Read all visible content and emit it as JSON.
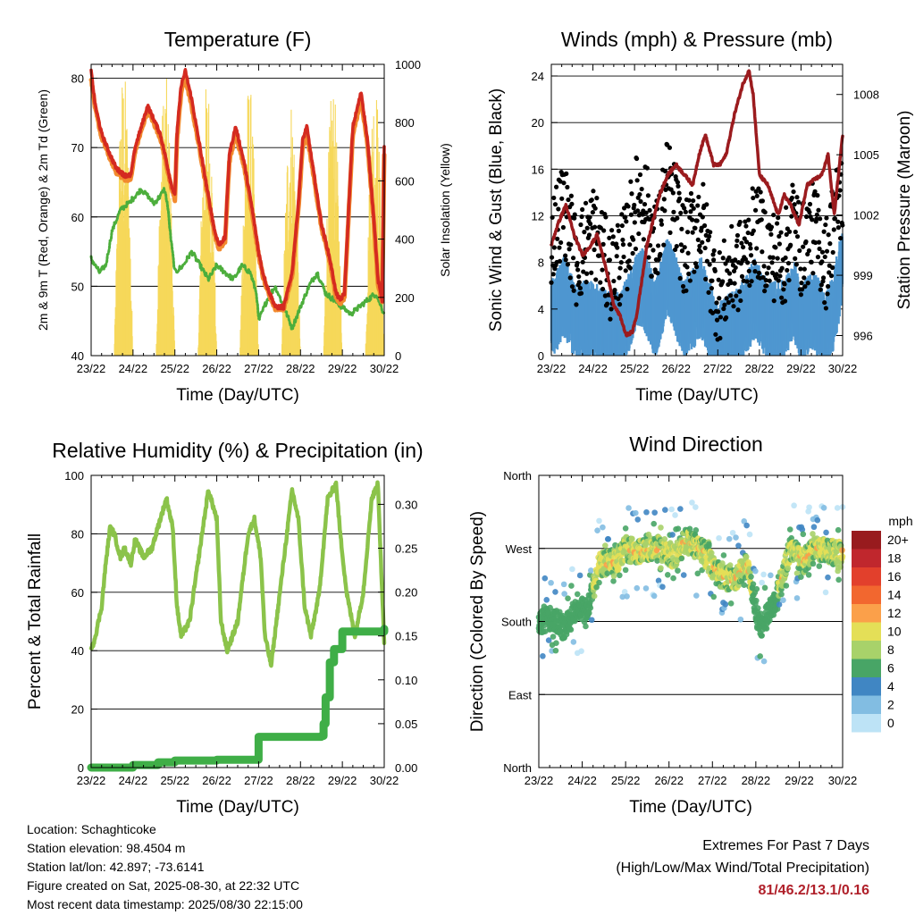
{
  "day_ticks": [
    "23/22",
    "24/22",
    "25/22",
    "26/22",
    "27/22",
    "28/22",
    "29/22",
    "30/22"
  ],
  "footer": {
    "location": "Location: Schaghticoke",
    "elevation": "Station elevation: 98.4504 m",
    "latlon": "Station lat/lon: 42.897; -73.6141",
    "created": "Figure created on Sat, 2025-08-30, at 22:32 UTC",
    "recent": "Most recent data timestamp: 2025/08/30 22:15:00"
  },
  "extremes": {
    "title": "Extremes For Past 7 Days",
    "subtitle": "(High/Low/Max Wind/Total Precipitation)",
    "values": "81/46.2/13.1/0.16"
  },
  "chart_data": [
    {
      "type": "line",
      "title": "Temperature (F)",
      "xlabel": "Time (Day/UTC)",
      "ylabel": "2m & 9m T (Red, Orange) & 2m Td (Green)",
      "ylabel_right": "Solar Insolation (Yellow)",
      "xlim": [
        0,
        7
      ],
      "ylim": [
        40,
        82
      ],
      "ylim_right": [
        0,
        1000
      ],
      "yticks": [
        40,
        50,
        60,
        70,
        80
      ],
      "yticks_right": [
        0,
        200,
        400,
        600,
        800,
        1000
      ],
      "grid": true,
      "series": [
        {
          "name": "2m T",
          "color": "#d42a20",
          "x": [
            0,
            0.1,
            0.25,
            0.45,
            0.6,
            0.8,
            0.95,
            1.05,
            1.2,
            1.35,
            1.5,
            1.65,
            1.8,
            1.9,
            2.0,
            2.05,
            2.15,
            2.25,
            2.4,
            2.6,
            2.8,
            2.95,
            3.05,
            3.2,
            3.3,
            3.45,
            3.65,
            3.85,
            4.0,
            4.1,
            4.2,
            4.4,
            4.6,
            4.8,
            4.95,
            5.05,
            5.15,
            5.3,
            5.5,
            5.7,
            5.85,
            5.95,
            6.05,
            6.25,
            6.45,
            6.6,
            6.75,
            6.85,
            6.95,
            7.0
          ],
          "values": [
            81,
            76,
            72,
            69,
            67,
            66,
            66,
            70,
            73,
            76,
            74,
            72,
            68,
            65,
            63,
            72,
            79,
            81,
            77,
            70,
            63,
            58,
            56,
            57,
            69,
            73,
            68,
            61,
            55,
            52,
            50,
            47,
            47,
            52,
            62,
            71,
            73,
            67,
            59,
            54,
            49,
            48,
            49,
            73,
            78,
            71,
            60,
            51,
            48,
            70
          ]
        },
        {
          "name": "9m T",
          "color": "#f28a2e",
          "x": [
            0,
            0.1,
            0.25,
            0.45,
            0.6,
            0.8,
            0.95,
            1.05,
            1.2,
            1.35,
            1.5,
            1.65,
            1.8,
            1.9,
            2.0,
            2.05,
            2.15,
            2.25,
            2.4,
            2.6,
            2.8,
            2.95,
            3.05,
            3.2,
            3.3,
            3.45,
            3.65,
            3.85,
            4.0,
            4.1,
            4.2,
            4.4,
            4.6,
            4.8,
            4.95,
            5.05,
            5.15,
            5.3,
            5.5,
            5.7,
            5.85,
            5.95,
            6.05,
            6.25,
            6.45,
            6.6,
            6.75,
            6.85,
            6.95,
            7.0
          ],
          "values": [
            80,
            75.5,
            71.5,
            68.5,
            66.5,
            65.5,
            65.5,
            69.5,
            72.5,
            75.5,
            73.5,
            71.5,
            67.5,
            64.5,
            62.5,
            71,
            78,
            80,
            76,
            69.5,
            62.5,
            57.5,
            55.5,
            56.5,
            68,
            72,
            67.5,
            60.5,
            54.5,
            51.5,
            49.5,
            46.8,
            46.8,
            51.5,
            61,
            70,
            72,
            66.5,
            58.5,
            53.5,
            48.5,
            47.5,
            48.5,
            72,
            77,
            70.5,
            59.5,
            50.5,
            47.5,
            69
          ]
        },
        {
          "name": "2m Td",
          "color": "#4cae3c",
          "x": [
            0,
            0.1,
            0.2,
            0.35,
            0.5,
            0.7,
            0.9,
            1.05,
            1.2,
            1.35,
            1.5,
            1.65,
            1.75,
            1.82,
            1.9,
            2.0,
            2.2,
            2.4,
            2.6,
            2.8,
            3.0,
            3.2,
            3.4,
            3.6,
            3.8,
            3.95,
            4.0,
            4.2,
            4.4,
            4.6,
            4.8,
            5.0,
            5.2,
            5.4,
            5.6,
            5.8,
            6.0,
            6.2,
            6.4,
            6.6,
            6.8,
            7.0
          ],
          "values": [
            54,
            53,
            52,
            53,
            58,
            61,
            62,
            63,
            64,
            63,
            62,
            63,
            64,
            62,
            57,
            52,
            53,
            55,
            53,
            51,
            53,
            52,
            51,
            53,
            52,
            49,
            45,
            48,
            50,
            47,
            44,
            47,
            50,
            52,
            49,
            48,
            47,
            46,
            47,
            48,
            49,
            46
          ]
        },
        {
          "name": "Solar Insolation",
          "color": "#f6d85a",
          "axis": "right",
          "day_peaks": [
            380,
            1000,
            970,
            960,
            950,
            900,
            940,
            980
          ]
        }
      ]
    },
    {
      "type": "scatter",
      "title": "Winds (mph) & Pressure (mb)",
      "xlabel": "Time (Day/UTC)",
      "ylabel": "Sonic Wind & Gust (Blue, Black)",
      "ylabel_right": "Station Pressure (Maroon)",
      "xlim": [
        0,
        7
      ],
      "ylim": [
        0,
        25
      ],
      "ylim_right": [
        995,
        1009.5
      ],
      "yticks": [
        0,
        4,
        8,
        12,
        16,
        20,
        24
      ],
      "yticks_right": [
        996,
        999,
        1002,
        1005,
        1008
      ],
      "grid": true,
      "series": [
        {
          "name": "Gust",
          "color": "#000000",
          "x": [
            0,
            0.3,
            0.6,
            1.0,
            1.4,
            1.8,
            2.0,
            2.2,
            2.5,
            2.8,
            3.2,
            3.6,
            3.8,
            4.0,
            4.3,
            4.6,
            4.9,
            5.2,
            5.6,
            5.8,
            6.0,
            6.3,
            6.6,
            6.8,
            7.0
          ],
          "values": [
            10,
            13,
            8,
            11,
            7,
            9,
            13,
            14,
            9,
            15,
            9,
            12,
            8,
            5,
            7,
            8,
            11,
            9,
            8,
            12,
            9,
            11,
            8,
            12,
            14
          ]
        },
        {
          "name": "Wind",
          "color": "#4f97d0",
          "x": [
            0,
            0.3,
            0.6,
            1.0,
            1.4,
            1.8,
            2.0,
            2.2,
            2.5,
            2.8,
            3.2,
            3.6,
            3.8,
            4.0,
            4.3,
            4.6,
            4.9,
            5.2,
            5.6,
            5.8,
            6.0,
            6.3,
            6.6,
            6.8,
            7.0
          ],
          "values": [
            3,
            5,
            3,
            3,
            2,
            3,
            5,
            6,
            3,
            7,
            3,
            5,
            3,
            1,
            2,
            3,
            5,
            3,
            3,
            5,
            3,
            4,
            2,
            4,
            8
          ]
        },
        {
          "name": "Pressure",
          "color": "#9b1b1e",
          "axis": "right",
          "x": [
            0,
            0.15,
            0.35,
            0.55,
            0.75,
            0.95,
            1.1,
            1.3,
            1.5,
            1.65,
            1.8,
            1.95,
            2.05,
            2.3,
            2.6,
            2.8,
            3.0,
            3.2,
            3.4,
            3.55,
            3.7,
            3.9,
            4.05,
            4.2,
            4.4,
            4.6,
            4.75,
            4.85,
            5.0,
            5.2,
            5.45,
            5.6,
            5.75,
            5.95,
            6.15,
            6.35,
            6.5,
            6.65,
            6.8,
            7.0
          ],
          "values": [
            1000.5,
            1001.5,
            1002.5,
            1001,
            1000,
            1000.5,
            1001,
            999.5,
            997.5,
            997,
            996,
            996.2,
            997,
            1000.5,
            1003,
            1004,
            1004.5,
            1004,
            1003.5,
            1005,
            1006,
            1004.5,
            1004.5,
            1005,
            1007,
            1008.5,
            1009.2,
            1008,
            1004,
            1003.5,
            1002,
            1003,
            1002.5,
            1001.5,
            1003.5,
            1003.8,
            1004,
            1005,
            1002,
            1006
          ]
        }
      ]
    },
    {
      "type": "line",
      "title": "Relative Humidity (%) & Precipitation (in)",
      "xlabel": "Time (Day/UTC)",
      "ylabel": "Percent & Total Rainfall",
      "xlim": [
        0,
        7
      ],
      "ylim": [
        0,
        100
      ],
      "ylim_right": [
        0,
        0.333
      ],
      "yticks": [
        0,
        20,
        40,
        60,
        80,
        100
      ],
      "yticks_right": [
        0.0,
        0.05,
        0.1,
        0.15,
        0.2,
        0.25,
        0.3
      ],
      "grid": true,
      "series": [
        {
          "name": "Relative Humidity",
          "color": "#8bc34a",
          "x": [
            0,
            0.1,
            0.25,
            0.35,
            0.45,
            0.55,
            0.7,
            0.8,
            0.95,
            1.05,
            1.25,
            1.45,
            1.65,
            1.8,
            1.95,
            2.05,
            2.15,
            2.35,
            2.6,
            2.8,
            3.0,
            3.1,
            3.25,
            3.5,
            3.75,
            3.9,
            4.05,
            4.15,
            4.3,
            4.55,
            4.8,
            4.95,
            5.1,
            5.25,
            5.45,
            5.65,
            5.85,
            5.95,
            6.1,
            6.3,
            6.5,
            6.7,
            6.85,
            6.95,
            7.0
          ],
          "values": [
            40,
            45,
            55,
            70,
            82,
            80,
            72,
            75,
            70,
            78,
            72,
            75,
            85,
            92,
            82,
            55,
            45,
            50,
            75,
            95,
            85,
            50,
            40,
            50,
            80,
            85,
            72,
            45,
            35,
            65,
            95,
            85,
            55,
            45,
            60,
            92,
            97,
            80,
            60,
            45,
            60,
            92,
            97,
            60,
            42
          ]
        },
        {
          "name": "Total Precipitation",
          "color": "#3fae47",
          "axis": "right",
          "step": true,
          "x": [
            0,
            1.0,
            1.6,
            2.0,
            3.0,
            3.9,
            4.0,
            5.5,
            5.55,
            5.6,
            5.7,
            5.8,
            6.0,
            7.0
          ],
          "values": [
            0,
            0.003,
            0.006,
            0.008,
            0.009,
            0.009,
            0.035,
            0.036,
            0.05,
            0.08,
            0.12,
            0.135,
            0.155,
            0.158
          ]
        }
      ]
    },
    {
      "type": "scatter",
      "title": "Wind Direction",
      "xlabel": "Time (Day/UTC)",
      "ylabel": "Direction (Colored By Speed)",
      "xlim": [
        0,
        7
      ],
      "ylim": [
        0,
        360
      ],
      "yticks": [
        "North",
        "East",
        "South",
        "West",
        "North"
      ],
      "grid": true,
      "legend": {
        "title": "mph",
        "placement": "right",
        "labels": [
          "20+",
          "18",
          "16",
          "14",
          "12",
          "10",
          "8",
          "6",
          "4",
          "2",
          "0"
        ],
        "colors": [
          "#981b1e",
          "#c0272d",
          "#e2402c",
          "#f2672f",
          "#fba04a",
          "#e4df57",
          "#a8d26a",
          "#48a566",
          "#4086c3",
          "#82bde2",
          "#bde3f6"
        ]
      },
      "series": [
        {
          "name": "Direction",
          "x": [
            0,
            0.3,
            0.6,
            0.9,
            1.1,
            1.4,
            1.8,
            2.0,
            2.3,
            2.8,
            3.1,
            3.4,
            3.8,
            4.1,
            4.5,
            4.8,
            5.1,
            5.4,
            5.8,
            6.1,
            6.4,
            6.8,
            7.0
          ],
          "values": [
            180,
            185,
            170,
            200,
            190,
            250,
            255,
            270,
            265,
            270,
            260,
            280,
            265,
            240,
            230,
            250,
            170,
            200,
            270,
            255,
            270,
            265,
            265
          ]
        }
      ]
    }
  ]
}
